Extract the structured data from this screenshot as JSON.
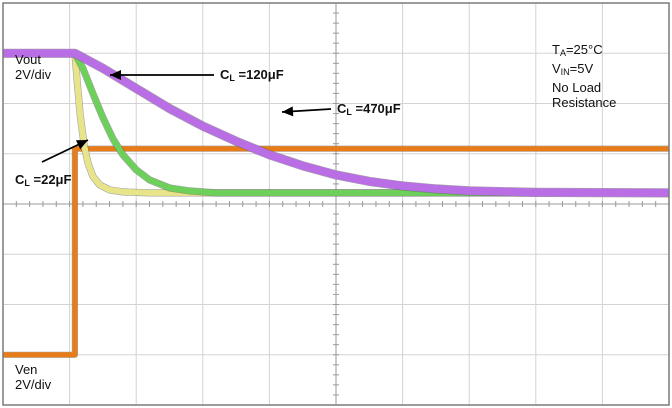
{
  "chart_data": {
    "type": "line",
    "title": "",
    "xlabel": "",
    "ylabel": "",
    "x_divisions": 10,
    "y_divisions": 8,
    "grid": true,
    "channels": {
      "vout": {
        "label": "Vout",
        "scale": "2V/div"
      },
      "ven": {
        "label": "Ven",
        "scale": "2V/div"
      }
    },
    "conditions": {
      "line1_prefix": "T",
      "line1_sub": "A",
      "line1_suffix": "=25°C",
      "line2_prefix": "V",
      "line2_sub": "IN",
      "line2_suffix": "=5V",
      "line3": "No Load",
      "line4": "Resistance"
    },
    "series": [
      {
        "name": "Ven",
        "color": "#e87d18",
        "x": [
          0,
          1.08,
          1.08,
          10
        ],
        "y": [
          -3.0,
          -3.0,
          1.1,
          1.1
        ]
      },
      {
        "name": "CL=22μF",
        "label_main": "C",
        "label_sub": "L",
        "label_value": " =22μF",
        "color": "#e8e48a",
        "x": [
          0,
          1.08,
          1.12,
          1.16,
          1.22,
          1.28,
          1.35,
          1.45,
          1.6,
          1.8,
          2.2,
          10
        ],
        "y": [
          3.0,
          3.0,
          2.35,
          1.75,
          1.15,
          0.8,
          0.55,
          0.38,
          0.28,
          0.24,
          0.22,
          0.22
        ]
      },
      {
        "name": "CL=120μF",
        "label_main": "C",
        "label_sub": "L",
        "label_value": " =120μF",
        "color": "#6cd05a",
        "x": [
          0,
          1.08,
          1.2,
          1.35,
          1.5,
          1.65,
          1.8,
          2.0,
          2.2,
          2.5,
          2.8,
          3.2,
          10
        ],
        "y": [
          3.0,
          3.0,
          2.7,
          2.2,
          1.72,
          1.3,
          0.98,
          0.68,
          0.48,
          0.32,
          0.26,
          0.22,
          0.22
        ]
      },
      {
        "name": "CL=470μF",
        "label_main": "C",
        "label_sub": "L",
        "label_value": " =470μF",
        "color": "#b96ee6",
        "x": [
          0,
          1.08,
          1.5,
          2.0,
          2.5,
          3.0,
          3.5,
          4.0,
          4.5,
          5.0,
          5.5,
          6.0,
          6.5,
          7.0,
          8.0,
          10
        ],
        "y": [
          3.0,
          3.0,
          2.7,
          2.3,
          1.9,
          1.55,
          1.25,
          0.98,
          0.76,
          0.58,
          0.45,
          0.36,
          0.3,
          0.26,
          0.23,
          0.22
        ]
      }
    ]
  }
}
